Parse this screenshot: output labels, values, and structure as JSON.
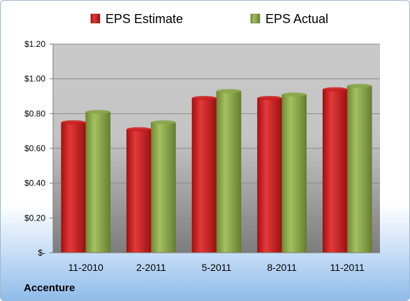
{
  "company": "Accenture",
  "chart_data": {
    "type": "bar",
    "categories": [
      "11-2010",
      "2-2011",
      "5-2011",
      "8-2011",
      "11-2011"
    ],
    "series": [
      {
        "name": "EPS Estimate",
        "values": [
          0.75,
          0.71,
          0.89,
          0.89,
          0.94
        ],
        "color": "#cc1f1f"
      },
      {
        "name": "EPS Actual",
        "values": [
          0.81,
          0.75,
          0.93,
          0.91,
          0.96
        ],
        "color": "#8aa64a"
      }
    ],
    "y_ticks": [
      {
        "value": 0,
        "label": "$-"
      },
      {
        "value": 0.2,
        "label": "$0.20"
      },
      {
        "value": 0.4,
        "label": "$0.40"
      },
      {
        "value": 0.6,
        "label": "$0.60"
      },
      {
        "value": 0.8,
        "label": "$0.80"
      },
      {
        "value": 1.0,
        "label": "$1.00"
      },
      {
        "value": 1.2,
        "label": "$1.20"
      }
    ],
    "ylim": [
      0,
      1.2
    ],
    "grid": true,
    "legend_position": "top"
  }
}
